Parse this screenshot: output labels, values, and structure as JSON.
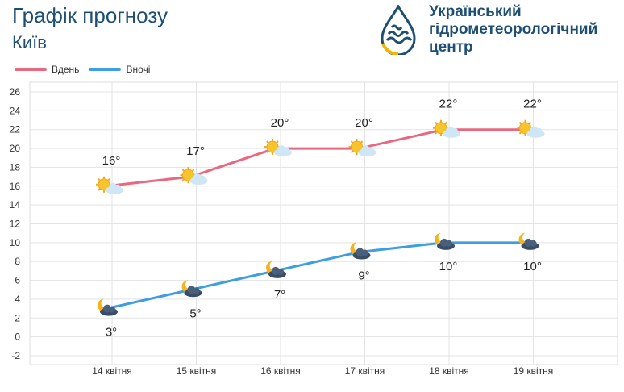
{
  "header": {
    "title": "Графік прогнозу",
    "city": "Київ",
    "org_lines": [
      "Український",
      "гідрометеорологічний",
      "центр"
    ]
  },
  "legend": [
    {
      "label": "Вдень",
      "color": "#e8697f"
    },
    {
      "label": "Вночі",
      "color": "#3e9fde"
    }
  ],
  "chart_data": {
    "type": "line",
    "categories": [
      "14 квітня",
      "15 квітня",
      "16 квітня",
      "17 квітня",
      "18 квітня",
      "19 квітня"
    ],
    "series": [
      {
        "name": "Вдень",
        "values": [
          16,
          17,
          20,
          20,
          22,
          22
        ],
        "labels": [
          "16°",
          "17°",
          "20°",
          "20°",
          "22°",
          "22°"
        ],
        "color": "#e8697f",
        "icons": [
          "sun-cloud-icon",
          "sun-cloud-icon",
          "sun-cloud-icon",
          "sun-cloud-icon",
          "sun-cloud-icon",
          "sun-cloud-icon"
        ]
      },
      {
        "name": "Вночі",
        "values": [
          3,
          5,
          7,
          9,
          10,
          10
        ],
        "labels": [
          "3°",
          "5°",
          "7°",
          "9°",
          "10°",
          "10°"
        ],
        "color": "#3e9fde",
        "icons": [
          "moon-cloud-icon",
          "moon-cloud-icon",
          "moon-cloud-icon",
          "moon-cloud-icon",
          "moon-cloud-icon",
          "moon-cloud-icon"
        ]
      }
    ],
    "ylim": [
      -2,
      26
    ],
    "yticks": [
      -2,
      0,
      2,
      4,
      6,
      8,
      10,
      12,
      14,
      16,
      18,
      20,
      22,
      24,
      26
    ],
    "grid": true,
    "legend_position": "top-left"
  }
}
